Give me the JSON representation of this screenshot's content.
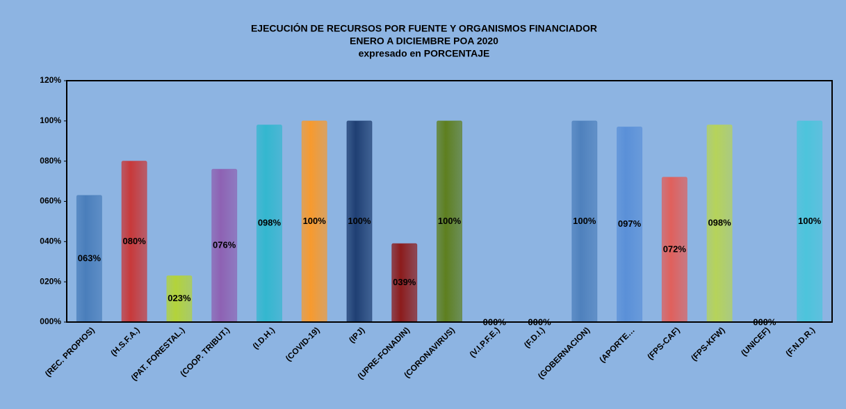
{
  "chart_data": {
    "type": "bar",
    "title": "EJECUCIÓN DE RECURSOS POR FUENTE Y ORGANISMOS FINANCIADOR",
    "subtitle": [
      "ENERO A DICIEMBRE POA 2020",
      "expresado en PORCENTAJE"
    ],
    "categories": [
      "(REC. PROPIOS)",
      "(H.S.F.A.)",
      "(PAT. FORESTAL.)",
      "(COOP. TRIBUT.)",
      "(I.D.H.)",
      "(COVID-19)",
      "(IPJ)",
      "(UPRE-FONADIN)",
      "(CORONAVIRUS)",
      "(V.I.P.F.E.)",
      "(F.D.I.)",
      "(GOBERNACION)",
      "(APORTE…",
      "(FPS-CAF)",
      "(FPS-KFW)",
      "(UNICEF)",
      "(F.N.D.R.)"
    ],
    "values": [
      63,
      80,
      23,
      76,
      98,
      100,
      100,
      39,
      100,
      0,
      0,
      100,
      97,
      72,
      98,
      0,
      100
    ],
    "value_labels": [
      "063%",
      "080%",
      "023%",
      "076%",
      "098%",
      "100%",
      "100%",
      "039%",
      "100%",
      "000%",
      "000%",
      "100%",
      "097%",
      "072%",
      "098%",
      "000%",
      "100%"
    ],
    "colors": [
      "#4a7ebb",
      "#c8393a",
      "#b3d33a",
      "#8e62b3",
      "#33b7cf",
      "#f79a2e",
      "#1f3f73",
      "#8c1c1c",
      "#5e7f1f",
      "#4a7ebb",
      "#4a7ebb",
      "#4f81bd",
      "#5a90d8",
      "#e0605c",
      "#b6d35a",
      "#4a7ebb",
      "#4cc4dc"
    ],
    "ylim": [
      0,
      120
    ],
    "yticks": [
      {
        "value": 0,
        "label": "000%"
      },
      {
        "value": 20,
        "label": "020%"
      },
      {
        "value": 40,
        "label": "040%"
      },
      {
        "value": 60,
        "label": "060%"
      },
      {
        "value": 80,
        "label": "080%"
      },
      {
        "value": 100,
        "label": "100%"
      },
      {
        "value": 120,
        "label": "120%"
      }
    ]
  }
}
